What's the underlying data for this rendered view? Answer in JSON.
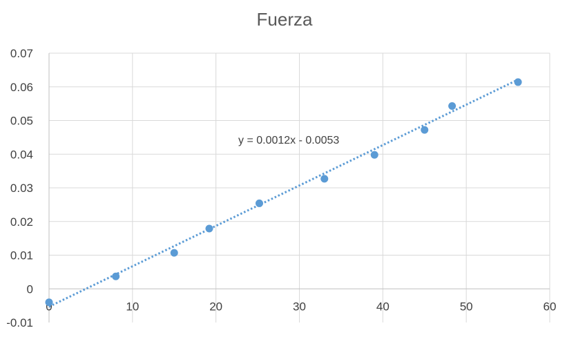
{
  "chart_data": {
    "type": "scatter",
    "title": "Fuerza",
    "xlabel": "",
    "ylabel": "",
    "xlim": [
      0,
      60
    ],
    "ylim": [
      -0.01,
      0.07
    ],
    "x_ticks": [
      0,
      10,
      20,
      30,
      40,
      50,
      60
    ],
    "x_tick_labels": [
      "0",
      "10",
      "20",
      "30",
      "40",
      "50",
      "60"
    ],
    "y_ticks": [
      -0.01,
      0,
      0.01,
      0.02,
      0.03,
      0.04,
      0.05,
      0.06,
      0.07
    ],
    "y_tick_labels": [
      "-0.01",
      "0",
      "0.01",
      "0.02",
      "0.03",
      "0.04",
      "0.05",
      "0.06",
      "0.07"
    ],
    "grid": true,
    "legend": "none",
    "series": [
      {
        "color": "#5b9bd5",
        "marker": "circle",
        "x": [
          0,
          8,
          15,
          19.2,
          25.2,
          33,
          39,
          45,
          48.3,
          56.2
        ],
        "y": [
          -0.004,
          0.0037,
          0.0107,
          0.0179,
          0.0254,
          0.0327,
          0.0398,
          0.0472,
          0.0543,
          0.0614
        ]
      }
    ],
    "trendline": {
      "type": "linear",
      "style": "dotted",
      "color": "#5b9bd5",
      "slope": 0.0012,
      "intercept": -0.0053,
      "x_range": [
        0,
        56.2
      ],
      "label": "y = 0.0012x - 0.0053"
    }
  }
}
